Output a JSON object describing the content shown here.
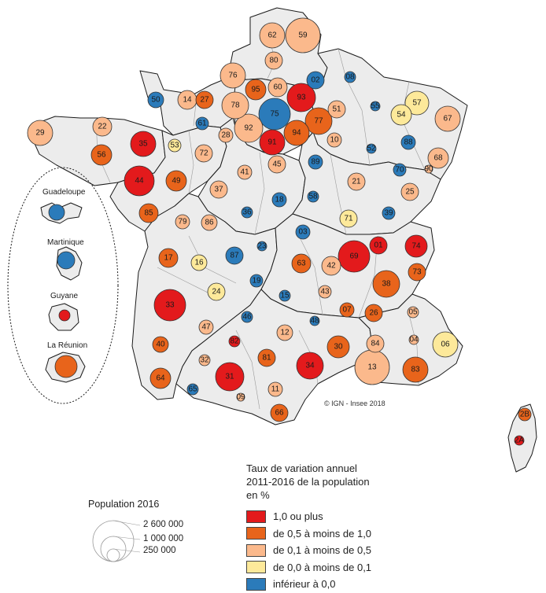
{
  "credit": "© IGN - Insee 2018",
  "rate_legend": {
    "title_lines": [
      "Taux de variation annuel",
      "2011-2016 de la population",
      "en %"
    ],
    "classes": [
      {
        "label": "1,0 ou plus",
        "color": "#e31a1c"
      },
      {
        "label": "de 0,5 à moins de 1,0",
        "color": "#e8641b"
      },
      {
        "label": "de 0,1 à moins de 0,5",
        "color": "#fbb98c"
      },
      {
        "label": "de 0,0 à moins de 0,1",
        "color": "#fde99a"
      },
      {
        "label": "inférieur à 0,0",
        "color": "#2b7bba"
      }
    ]
  },
  "population_legend": {
    "title": "Population 2016",
    "values": [
      "2 600 000",
      "1 000 000",
      "250 000"
    ]
  },
  "overseas": [
    {
      "name": "Guadeloupe",
      "class": 4
    },
    {
      "name": "Martinique",
      "class": 4
    },
    {
      "name": "Guyane",
      "class": 0
    },
    {
      "name": "La Réunion",
      "class": 1
    }
  ],
  "departments": [
    {
      "code": "62",
      "class": 2
    },
    {
      "code": "59",
      "class": 2
    },
    {
      "code": "80",
      "class": 2
    },
    {
      "code": "76",
      "class": 2
    },
    {
      "code": "95",
      "class": 1
    },
    {
      "code": "60",
      "class": 2
    },
    {
      "code": "02",
      "class": 4
    },
    {
      "code": "08",
      "class": 4
    },
    {
      "code": "50",
      "class": 4
    },
    {
      "code": "14",
      "class": 2
    },
    {
      "code": "27",
      "class": 1
    },
    {
      "code": "78",
      "class": 2
    },
    {
      "code": "75",
      "class": 4
    },
    {
      "code": "93",
      "class": 0
    },
    {
      "code": "51",
      "class": 2
    },
    {
      "code": "55",
      "class": 4
    },
    {
      "code": "57",
      "class": 3
    },
    {
      "code": "54",
      "class": 3
    },
    {
      "code": "67",
      "class": 2
    },
    {
      "code": "29",
      "class": 2
    },
    {
      "code": "22",
      "class": 2
    },
    {
      "code": "61",
      "class": 4
    },
    {
      "code": "92",
      "class": 2
    },
    {
      "code": "94",
      "class": 1
    },
    {
      "code": "77",
      "class": 1
    },
    {
      "code": "35",
      "class": 0
    },
    {
      "code": "53",
      "class": 3
    },
    {
      "code": "28",
      "class": 2
    },
    {
      "code": "91",
      "class": 0
    },
    {
      "code": "10",
      "class": 2
    },
    {
      "code": "52",
      "class": 4
    },
    {
      "code": "88",
      "class": 4
    },
    {
      "code": "56",
      "class": 1
    },
    {
      "code": "72",
      "class": 2
    },
    {
      "code": "45",
      "class": 2
    },
    {
      "code": "89",
      "class": 4
    },
    {
      "code": "70",
      "class": 4
    },
    {
      "code": "90",
      "class": 2
    },
    {
      "code": "68",
      "class": 2
    },
    {
      "code": "44",
      "class": 0
    },
    {
      "code": "49",
      "class": 1
    },
    {
      "code": "41",
      "class": 2
    },
    {
      "code": "21",
      "class": 2
    },
    {
      "code": "25",
      "class": 2
    },
    {
      "code": "37",
      "class": 2
    },
    {
      "code": "18",
      "class": 4
    },
    {
      "code": "58",
      "class": 4
    },
    {
      "code": "85",
      "class": 1
    },
    {
      "code": "36",
      "class": 4
    },
    {
      "code": "71",
      "class": 3
    },
    {
      "code": "39",
      "class": 4
    },
    {
      "code": "79",
      "class": 2
    },
    {
      "code": "86",
      "class": 2
    },
    {
      "code": "03",
      "class": 4
    },
    {
      "code": "01",
      "class": 0
    },
    {
      "code": "74",
      "class": 0
    },
    {
      "code": "17",
      "class": 1
    },
    {
      "code": "16",
      "class": 3
    },
    {
      "code": "87",
      "class": 4
    },
    {
      "code": "23",
      "class": 4
    },
    {
      "code": "63",
      "class": 1
    },
    {
      "code": "69",
      "class": 0
    },
    {
      "code": "42",
      "class": 2
    },
    {
      "code": "73",
      "class": 1
    },
    {
      "code": "19",
      "class": 4
    },
    {
      "code": "38",
      "class": 1
    },
    {
      "code": "24",
      "class": 3
    },
    {
      "code": "15",
      "class": 4
    },
    {
      "code": "43",
      "class": 2
    },
    {
      "code": "33",
      "class": 0
    },
    {
      "code": "07",
      "class": 1
    },
    {
      "code": "26",
      "class": 1
    },
    {
      "code": "05",
      "class": 2
    },
    {
      "code": "47",
      "class": 2
    },
    {
      "code": "46",
      "class": 4
    },
    {
      "code": "48",
      "class": 4
    },
    {
      "code": "12",
      "class": 2
    },
    {
      "code": "04",
      "class": 2
    },
    {
      "code": "40",
      "class": 1
    },
    {
      "code": "82",
      "class": 0
    },
    {
      "code": "30",
      "class": 1
    },
    {
      "code": "84",
      "class": 2
    },
    {
      "code": "06",
      "class": 3
    },
    {
      "code": "32",
      "class": 2
    },
    {
      "code": "81",
      "class": 1
    },
    {
      "code": "34",
      "class": 0
    },
    {
      "code": "13",
      "class": 2
    },
    {
      "code": "83",
      "class": 1
    },
    {
      "code": "64",
      "class": 1
    },
    {
      "code": "31",
      "class": 0
    },
    {
      "code": "65",
      "class": 4
    },
    {
      "code": "09",
      "class": 2
    },
    {
      "code": "11",
      "class": 2
    },
    {
      "code": "66",
      "class": 1
    },
    {
      "code": "2B",
      "class": 1
    },
    {
      "code": "2A",
      "class": 0
    }
  ]
}
